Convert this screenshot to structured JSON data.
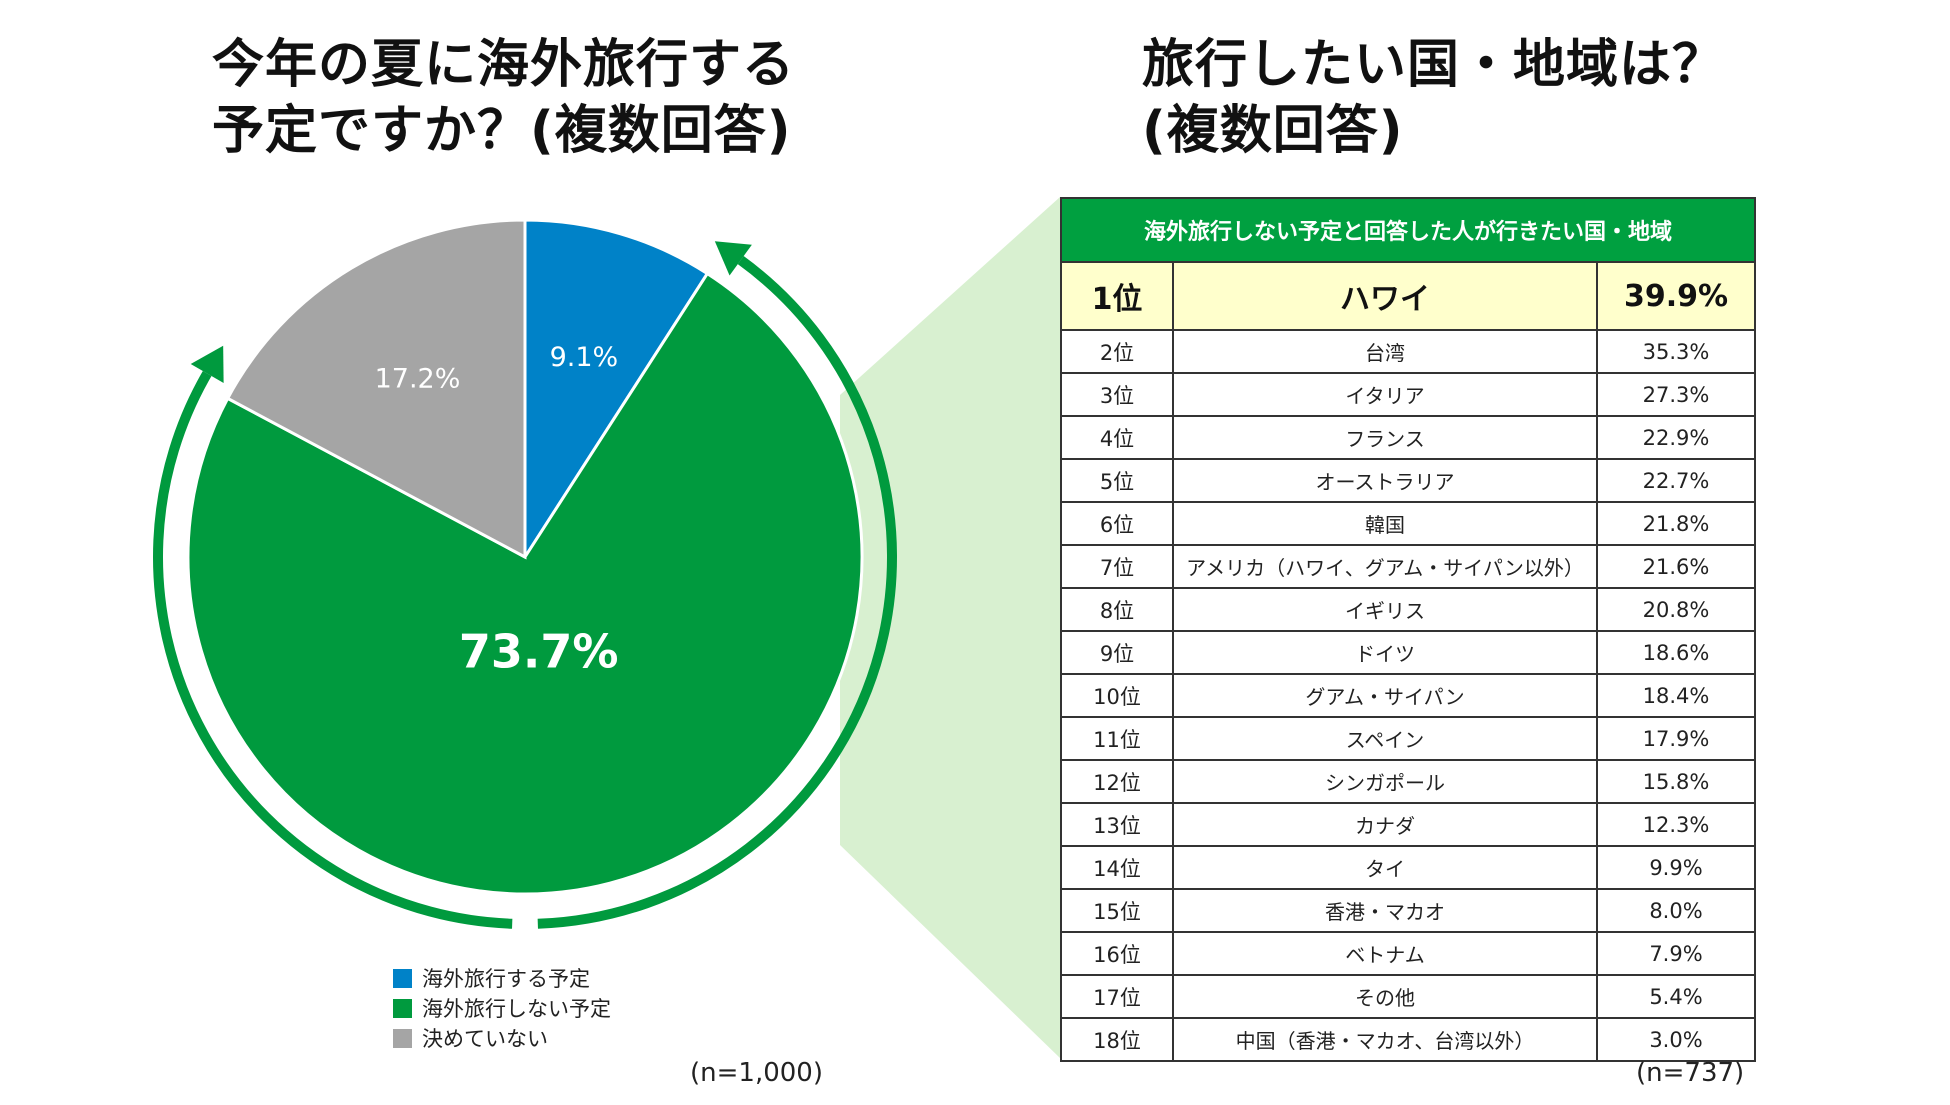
{
  "left_title": [
    "今年の夏に海外旅行する",
    "予定ですか？(複数回答)"
  ],
  "right_title": [
    "旅行したい国・地域は？",
    "(複数回答)"
  ],
  "chart_data": [
    {
      "type": "pie",
      "title": "今年の夏に海外旅行する予定ですか？(複数回答)",
      "slices": [
        {
          "label": "海外旅行する予定",
          "value": 9.1,
          "display": "9.1%",
          "color": "#0082c8"
        },
        {
          "label": "海外旅行しない予定",
          "value": 73.7,
          "display": "73.7%",
          "color": "#009a3e"
        },
        {
          "label": "決めていない",
          "value": 17.2,
          "display": "17.2%",
          "color": "#a5a5a5"
        }
      ],
      "legend_position": "bottom",
      "note": "(n=1,000)"
    },
    {
      "type": "table",
      "caption": "海外旅行しない予定と回答した人が行きたい国・地域",
      "rows": [
        {
          "rank": "1位",
          "country": "ハワイ",
          "pct": "39.9%"
        },
        {
          "rank": "2位",
          "country": "台湾",
          "pct": "35.3%"
        },
        {
          "rank": "3位",
          "country": "イタリア",
          "pct": "27.3%"
        },
        {
          "rank": "4位",
          "country": "フランス",
          "pct": "22.9%"
        },
        {
          "rank": "5位",
          "country": "オーストラリア",
          "pct": "22.7%"
        },
        {
          "rank": "6位",
          "country": "韓国",
          "pct": "21.8%"
        },
        {
          "rank": "7位",
          "country": "アメリカ（ハワイ、グアム・サイパン以外）",
          "pct": "21.6%"
        },
        {
          "rank": "8位",
          "country": "イギリス",
          "pct": "20.8%"
        },
        {
          "rank": "9位",
          "country": "ドイツ",
          "pct": "18.6%"
        },
        {
          "rank": "10位",
          "country": "グアム・サイパン",
          "pct": "18.4%"
        },
        {
          "rank": "11位",
          "country": "スペイン",
          "pct": "17.9%"
        },
        {
          "rank": "12位",
          "country": "シンガポール",
          "pct": "15.8%"
        },
        {
          "rank": "13位",
          "country": "カナダ",
          "pct": "12.3%"
        },
        {
          "rank": "14位",
          "country": "タイ",
          "pct": "9.9%"
        },
        {
          "rank": "15位",
          "country": "香港・マカオ",
          "pct": "8.0%"
        },
        {
          "rank": "16位",
          "country": "ベトナム",
          "pct": "7.9%"
        },
        {
          "rank": "17位",
          "country": "その他",
          "pct": "5.4%"
        },
        {
          "rank": "18位",
          "country": "中国（香港・マカオ、台湾以外）",
          "pct": "3.0%"
        }
      ],
      "note": "(n=737)"
    }
  ],
  "colors": {
    "accent_green": "#009a3e",
    "header_green": "#00a040",
    "highlight_yellow": "#ffffcc",
    "callout_green": "#d8f0d0"
  }
}
